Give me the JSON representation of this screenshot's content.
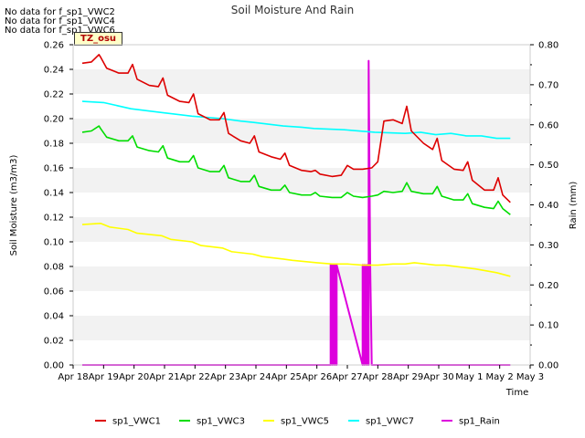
{
  "notes": {
    "line1": "No data for f_sp1_VWC2",
    "line2": "No data for f_sp1_VWC4",
    "line3": "No data for f_sp1_VWC6"
  },
  "tz_badge": "TZ_osu",
  "chart_data": {
    "type": "line",
    "title": "Soil Moisture And Rain",
    "xlabel": "Time",
    "ylabel": "Soil Moisture (m3/m3)",
    "ylabel_right": "Rain (mm)",
    "xlim": [
      0,
      15
    ],
    "ylim": [
      0,
      0.26
    ],
    "ylim_right": [
      0,
      0.8
    ],
    "x_ticks": [
      0,
      1,
      2,
      3,
      4,
      5,
      6,
      7,
      8,
      9,
      10,
      11,
      12,
      13,
      14,
      15
    ],
    "x_tick_labels": [
      "Apr 18",
      "Apr 19",
      "Apr 20",
      "Apr 21",
      "Apr 22",
      "Apr 23",
      "Apr 24",
      "Apr 25",
      "Apr 26",
      "Apr 27",
      "Apr 28",
      "Apr 29",
      "Apr 30",
      "May 1",
      "May 2",
      "May 3"
    ],
    "y_ticks": [
      0.0,
      0.02,
      0.04,
      0.06,
      0.08,
      0.1,
      0.12,
      0.14,
      0.16,
      0.18,
      0.2,
      0.22,
      0.24,
      0.26
    ],
    "y_tick_labels": [
      "0.00",
      "0.02",
      "0.04",
      "0.06",
      "0.08",
      "0.10",
      "0.12",
      "0.14",
      "0.16",
      "0.18",
      "0.20",
      "0.22",
      "0.24",
      "0.26"
    ],
    "y_right_ticks": [
      0.0,
      0.1,
      0.2,
      0.3,
      0.4,
      0.5,
      0.6,
      0.7,
      0.8
    ],
    "y_right_tick_labels": [
      "0.00",
      "0.10",
      "0.20",
      "0.30",
      "0.40",
      "0.50",
      "0.60",
      "0.70",
      "0.80"
    ],
    "grid": "horizontal bands",
    "legend_position": "bottom",
    "series": [
      {
        "name": "sp1_VWC1",
        "color": "#dd0000",
        "axis": "left",
        "x": [
          0.3,
          0.6,
          0.85,
          0.9,
          1.1,
          1.5,
          1.8,
          1.95,
          2.1,
          2.5,
          2.8,
          2.95,
          3.1,
          3.5,
          3.8,
          3.95,
          4.1,
          4.5,
          4.8,
          4.95,
          5.1,
          5.5,
          5.8,
          5.95,
          6.1,
          6.5,
          6.8,
          6.95,
          7.1,
          7.5,
          7.8,
          7.95,
          8.1,
          8.5,
          8.8,
          9.0,
          9.2,
          9.5,
          9.8,
          10.0,
          10.2,
          10.5,
          10.8,
          10.95,
          11.1,
          11.5,
          11.8,
          11.95,
          12.1,
          12.5,
          12.8,
          12.95,
          13.1,
          13.5,
          13.8,
          13.95,
          14.1,
          14.35
        ],
        "values": [
          0.245,
          0.246,
          0.252,
          0.25,
          0.241,
          0.237,
          0.237,
          0.244,
          0.232,
          0.227,
          0.226,
          0.233,
          0.219,
          0.214,
          0.213,
          0.22,
          0.204,
          0.199,
          0.199,
          0.205,
          0.188,
          0.182,
          0.18,
          0.186,
          0.173,
          0.169,
          0.167,
          0.172,
          0.162,
          0.158,
          0.157,
          0.158,
          0.155,
          0.153,
          0.154,
          0.162,
          0.159,
          0.159,
          0.16,
          0.165,
          0.198,
          0.199,
          0.196,
          0.21,
          0.19,
          0.18,
          0.175,
          0.184,
          0.166,
          0.159,
          0.158,
          0.165,
          0.15,
          0.142,
          0.142,
          0.152,
          0.138,
          0.132
        ]
      },
      {
        "name": "sp1_VWC3",
        "color": "#00dd00",
        "axis": "left",
        "x": [
          0.3,
          0.6,
          0.85,
          0.9,
          1.1,
          1.5,
          1.8,
          1.95,
          2.1,
          2.5,
          2.8,
          2.95,
          3.1,
          3.5,
          3.8,
          3.95,
          4.1,
          4.5,
          4.8,
          4.95,
          5.1,
          5.5,
          5.8,
          5.95,
          6.1,
          6.5,
          6.8,
          6.95,
          7.1,
          7.5,
          7.8,
          7.95,
          8.1,
          8.5,
          8.8,
          9.0,
          9.2,
          9.5,
          9.8,
          10.0,
          10.2,
          10.5,
          10.8,
          10.95,
          11.1,
          11.5,
          11.8,
          11.95,
          12.1,
          12.5,
          12.8,
          12.95,
          13.1,
          13.5,
          13.8,
          13.95,
          14.1,
          14.35
        ],
        "values": [
          0.189,
          0.19,
          0.194,
          0.192,
          0.185,
          0.182,
          0.182,
          0.186,
          0.177,
          0.174,
          0.173,
          0.178,
          0.168,
          0.165,
          0.165,
          0.17,
          0.16,
          0.157,
          0.157,
          0.162,
          0.152,
          0.149,
          0.149,
          0.154,
          0.145,
          0.142,
          0.142,
          0.146,
          0.14,
          0.138,
          0.138,
          0.14,
          0.137,
          0.136,
          0.136,
          0.14,
          0.137,
          0.136,
          0.137,
          0.138,
          0.141,
          0.14,
          0.141,
          0.148,
          0.141,
          0.139,
          0.139,
          0.145,
          0.137,
          0.134,
          0.134,
          0.139,
          0.131,
          0.128,
          0.127,
          0.133,
          0.127,
          0.122
        ]
      },
      {
        "name": "sp1_VWC5",
        "color": "#ffff00",
        "axis": "left",
        "x": [
          0.3,
          0.9,
          1.2,
          1.8,
          2.1,
          2.9,
          3.2,
          3.9,
          4.2,
          4.9,
          5.2,
          5.9,
          6.2,
          6.9,
          7.2,
          8.0,
          8.5,
          9.0,
          9.5,
          10.0,
          10.5,
          10.9,
          11.2,
          11.9,
          12.2,
          12.9,
          13.2,
          13.9,
          14.35
        ],
        "values": [
          0.114,
          0.115,
          0.112,
          0.11,
          0.107,
          0.105,
          0.102,
          0.1,
          0.097,
          0.095,
          0.092,
          0.09,
          0.088,
          0.086,
          0.085,
          0.083,
          0.082,
          0.082,
          0.081,
          0.081,
          0.082,
          0.082,
          0.083,
          0.081,
          0.081,
          0.079,
          0.078,
          0.075,
          0.072
        ]
      },
      {
        "name": "sp1_VWC7",
        "color": "#00ffff",
        "axis": "left",
        "x": [
          0.3,
          1.0,
          1.9,
          2.9,
          3.9,
          4.9,
          5.5,
          5.9,
          6.9,
          7.5,
          7.9,
          8.9,
          9.9,
          10.9,
          11.4,
          11.9,
          12.4,
          12.9,
          13.4,
          13.9,
          14.35
        ],
        "values": [
          0.214,
          0.213,
          0.208,
          0.205,
          0.202,
          0.2,
          0.198,
          0.197,
          0.194,
          0.193,
          0.192,
          0.191,
          0.189,
          0.188,
          0.189,
          0.187,
          0.188,
          0.186,
          0.186,
          0.184,
          0.184
        ]
      },
      {
        "name": "sp1_Rain",
        "color": "#dd00dd",
        "axis": "right",
        "x": [
          0.3,
          8.45,
          8.45,
          8.5,
          8.5,
          8.55,
          8.55,
          8.6,
          8.6,
          8.65,
          8.65,
          9.5,
          9.5,
          9.55,
          9.55,
          9.6,
          9.6,
          9.65,
          9.65,
          9.7,
          9.7,
          9.75,
          9.75,
          9.8,
          9.8,
          14.35
        ],
        "values": [
          0.0,
          0.0,
          0.25,
          0.0,
          0.25,
          0.0,
          0.25,
          0.0,
          0.25,
          0.0,
          0.25,
          0.0,
          0.25,
          0.0,
          0.25,
          0.0,
          0.25,
          0.0,
          0.25,
          0.0,
          0.76,
          0.25,
          0.25,
          0.0,
          0.0,
          0.0
        ]
      }
    ]
  }
}
